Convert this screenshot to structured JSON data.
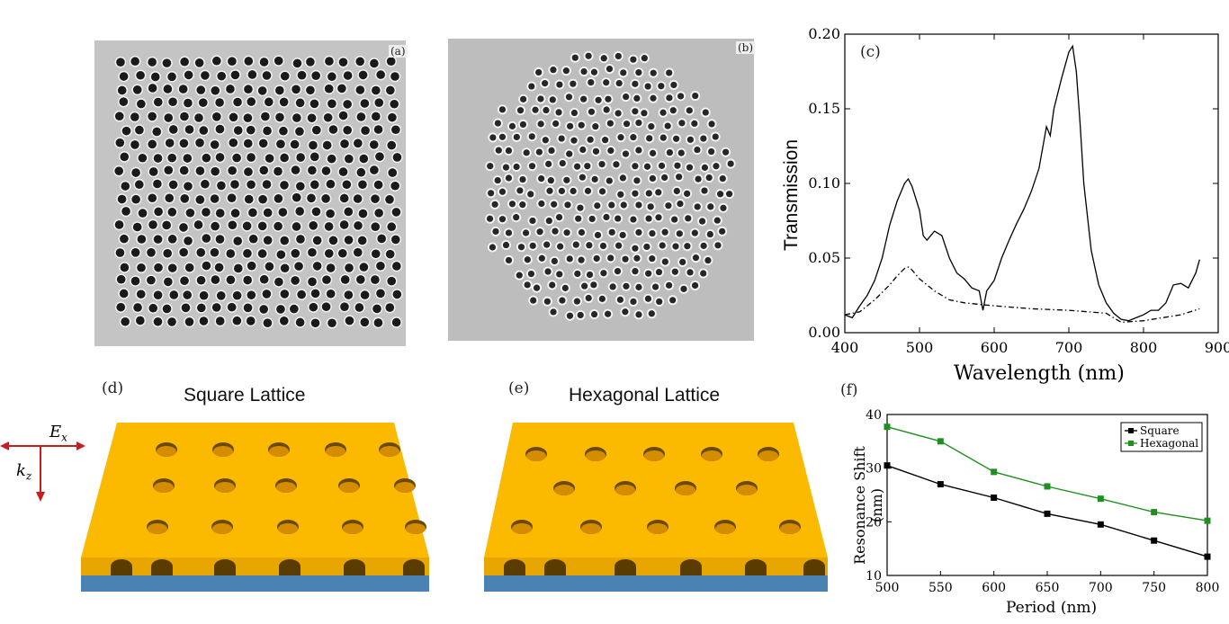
{
  "panels": {
    "a": {
      "label": "(a)"
    },
    "b": {
      "label": "(b)"
    },
    "c": {
      "label": "(c)"
    },
    "d": {
      "label": "(d)",
      "title": "Square Lattice"
    },
    "e": {
      "label": "(e)",
      "title": "Hexagonal Lattice"
    },
    "f": {
      "label": "(f)"
    }
  },
  "axes_legend": {
    "ex": "E",
    "ex_sub": "x",
    "kz": "k",
    "kz_sub": "z"
  },
  "colors": {
    "gold": "#f7b800",
    "gold_side": "#e39a00",
    "substrate": "#4a82b4",
    "arrow": "#cc1b1b",
    "square_series": "#000000",
    "hex_series": "#1f8f1f"
  },
  "chart_data": [
    {
      "id": "c",
      "type": "line",
      "title": "",
      "xlabel": "Wavelength (nm)",
      "ylabel": "Transmission",
      "xlim": [
        400,
        900
      ],
      "ylim": [
        0,
        0.2
      ],
      "xticks": [
        "400",
        "500",
        "600",
        "700",
        "800",
        "900"
      ],
      "yticks": [
        "0.00",
        "0.05",
        "0.10",
        "0.15",
        "0.20"
      ],
      "series": [
        {
          "name": "solid",
          "style": "solid",
          "x": [
            400,
            410,
            420,
            430,
            440,
            450,
            460,
            470,
            480,
            485,
            490,
            500,
            505,
            510,
            520,
            530,
            540,
            550,
            560,
            570,
            580,
            585,
            590,
            600,
            610,
            620,
            630,
            640,
            650,
            660,
            670,
            675,
            680,
            690,
            700,
            705,
            710,
            715,
            720,
            730,
            740,
            750,
            760,
            770,
            780,
            790,
            800,
            810,
            820,
            830,
            840,
            850,
            860,
            870,
            875
          ],
          "y": [
            0.012,
            0.01,
            0.018,
            0.025,
            0.035,
            0.05,
            0.072,
            0.088,
            0.1,
            0.103,
            0.098,
            0.082,
            0.065,
            0.062,
            0.068,
            0.065,
            0.05,
            0.04,
            0.036,
            0.03,
            0.028,
            0.015,
            0.028,
            0.035,
            0.05,
            0.062,
            0.073,
            0.083,
            0.095,
            0.11,
            0.138,
            0.132,
            0.15,
            0.17,
            0.188,
            0.192,
            0.175,
            0.14,
            0.1,
            0.055,
            0.032,
            0.02,
            0.013,
            0.009,
            0.008,
            0.01,
            0.012,
            0.015,
            0.015,
            0.02,
            0.032,
            0.033,
            0.03,
            0.04,
            0.049
          ]
        },
        {
          "name": "dash-dot",
          "style": "dashdot",
          "x": [
            400,
            420,
            440,
            460,
            470,
            480,
            485,
            490,
            500,
            520,
            540,
            560,
            580,
            600,
            650,
            700,
            750,
            770,
            800,
            850,
            875
          ],
          "y": [
            0.012,
            0.014,
            0.022,
            0.032,
            0.038,
            0.043,
            0.044,
            0.042,
            0.036,
            0.028,
            0.022,
            0.02,
            0.019,
            0.018,
            0.016,
            0.015,
            0.013,
            0.007,
            0.008,
            0.012,
            0.016
          ]
        }
      ]
    },
    {
      "id": "f",
      "type": "line",
      "title": "",
      "xlabel": "Period (nm)",
      "ylabel": "Resonance Shift (nm)",
      "xlim": [
        500,
        800
      ],
      "ylim": [
        10,
        40
      ],
      "xticks": [
        "500",
        "550",
        "600",
        "650",
        "700",
        "750",
        "800"
      ],
      "yticks": [
        "10",
        "20",
        "30",
        "40"
      ],
      "legend": [
        "Square",
        "Hexagonal"
      ],
      "x": [
        500,
        550,
        600,
        650,
        700,
        750,
        800
      ],
      "series": [
        {
          "name": "Square",
          "values": [
            30.5,
            27.0,
            24.5,
            21.5,
            19.5,
            16.5,
            13.5
          ]
        },
        {
          "name": "Hexagonal",
          "values": [
            37.7,
            35.0,
            29.3,
            26.6,
            24.3,
            21.8,
            20.2
          ]
        }
      ]
    }
  ]
}
